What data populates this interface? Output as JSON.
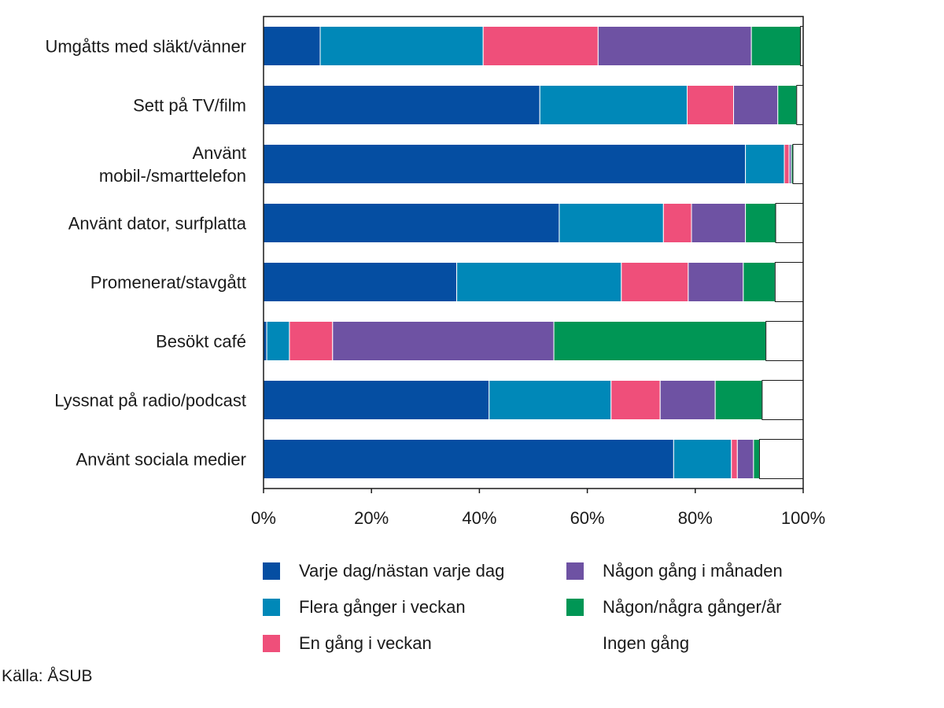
{
  "chart_data": {
    "type": "bar",
    "orientation": "horizontal",
    "stacked": true,
    "categories": [
      "Umgåtts med släkt/vänner",
      "Sett på TV/film",
      "Använt mobil-/smarttelefon",
      "Använt dator, surfplatta",
      "Promenerat/stavgått",
      "Besökt café",
      "Lyssnat på radio/podcast",
      "Använt sociala medier"
    ],
    "series": [
      {
        "name": "Varje dag/nästan varje dag",
        "color": "#054ea2",
        "values": [
          10.5,
          51.2,
          89.3,
          54.8,
          35.8,
          0.6,
          41.8,
          76.0
        ]
      },
      {
        "name": "Flera gånger i veckan",
        "color": "#0088b8",
        "values": [
          30.2,
          27.3,
          7.2,
          19.3,
          30.5,
          4.2,
          22.6,
          10.7
        ]
      },
      {
        "name": "En gång i veckan",
        "color": "#ef4f7a",
        "values": [
          21.3,
          8.6,
          0.9,
          5.2,
          12.4,
          8.0,
          9.1,
          1.1
        ]
      },
      {
        "name": "Någon gång i månaden",
        "color": "#6e52a3",
        "values": [
          28.4,
          8.2,
          0.4,
          10.0,
          10.2,
          41.0,
          10.2,
          3.0
        ]
      },
      {
        "name": "Någon/några gånger/år",
        "color": "#009655",
        "values": [
          9.1,
          3.5,
          0.3,
          5.6,
          5.9,
          39.3,
          8.7,
          1.1
        ]
      },
      {
        "name": "Ingen gång",
        "color": "#ffffff",
        "values": [
          0.5,
          1.2,
          1.9,
          5.1,
          5.2,
          6.9,
          7.6,
          8.1
        ]
      }
    ],
    "x_ticks": [
      "0%",
      "20%",
      "40%",
      "60%",
      "80%",
      "100%"
    ],
    "xlim": [
      0,
      100
    ],
    "grid": false,
    "legend_position": "bottom"
  },
  "category_label_lines": [
    [
      "Umgåtts med släkt/vänner"
    ],
    [
      "Sett på TV/film"
    ],
    [
      "Använt",
      "mobil-/smarttelefon"
    ],
    [
      "Använt dator, surfplatta"
    ],
    [
      "Promenerat/stavgått"
    ],
    [
      "Besökt café"
    ],
    [
      "Lyssnat på radio/podcast"
    ],
    [
      "Använt sociala medier"
    ]
  ],
  "legend": [
    "Varje dag/nästan varje dag",
    "Flera gånger i veckan",
    "En gång i veckan",
    "Någon gång i månaden",
    "Någon/några gånger/år",
    "Ingen gång"
  ],
  "source": "Källa: ÅSUB"
}
